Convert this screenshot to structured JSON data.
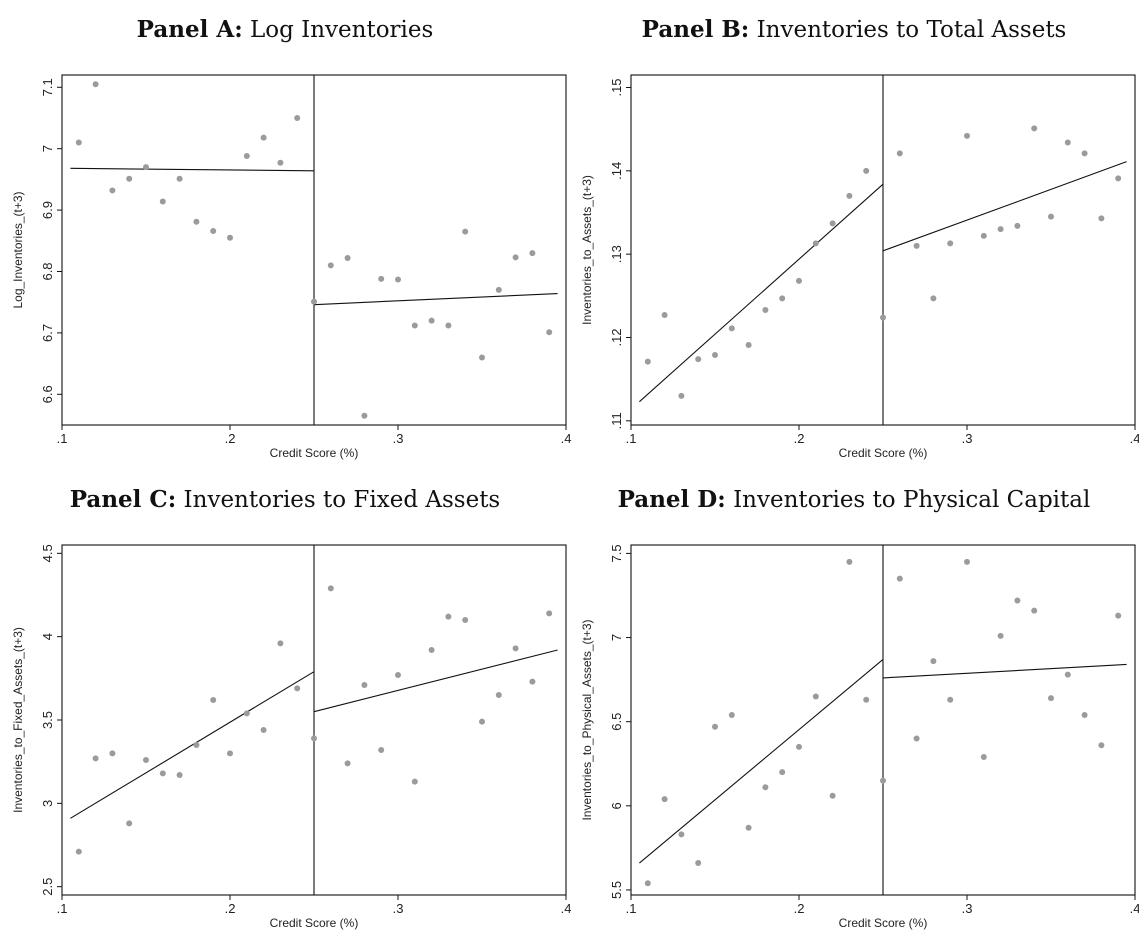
{
  "chart_data": [
    {
      "type": "scatter",
      "panel_label": "Panel A:",
      "title": "Log Inventories",
      "xlabel": "Credit Score (%)",
      "ylabel": "Log_Inventories_(t+3)",
      "xlim": [
        0.1,
        0.4
      ],
      "ylim": [
        6.55,
        7.12
      ],
      "xticks": [
        ".1",
        ".2",
        ".3",
        ".4"
      ],
      "xtick_values": [
        0.1,
        0.2,
        0.3,
        0.4
      ],
      "yticks": [
        "6.6",
        "6.7",
        "6.8",
        "6.9",
        "7",
        "7.1"
      ],
      "ytick_values": [
        6.6,
        6.7,
        6.8,
        6.9,
        7.0,
        7.1
      ],
      "cutoff": 0.25,
      "points": [
        [
          0.11,
          7.01
        ],
        [
          0.12,
          7.105
        ],
        [
          0.13,
          6.932
        ],
        [
          0.14,
          6.951
        ],
        [
          0.15,
          6.97
        ],
        [
          0.16,
          6.914
        ],
        [
          0.17,
          6.951
        ],
        [
          0.18,
          6.881
        ],
        [
          0.19,
          6.866
        ],
        [
          0.2,
          6.855
        ],
        [
          0.21,
          6.988
        ],
        [
          0.22,
          7.018
        ],
        [
          0.23,
          6.977
        ],
        [
          0.24,
          7.05
        ],
        [
          0.25,
          6.751
        ],
        [
          0.26,
          6.81
        ],
        [
          0.27,
          6.822
        ],
        [
          0.28,
          6.565
        ],
        [
          0.29,
          6.788
        ],
        [
          0.3,
          6.787
        ],
        [
          0.31,
          6.712
        ],
        [
          0.32,
          6.72
        ],
        [
          0.33,
          6.712
        ],
        [
          0.34,
          6.865
        ],
        [
          0.35,
          6.66
        ],
        [
          0.36,
          6.77
        ],
        [
          0.37,
          6.823
        ],
        [
          0.38,
          6.83
        ],
        [
          0.39,
          6.701
        ]
      ],
      "fit_lines": [
        [
          [
            0.105,
            6.968
          ],
          [
            0.25,
            6.964
          ]
        ],
        [
          [
            0.25,
            6.746
          ],
          [
            0.395,
            6.764
          ]
        ]
      ]
    },
    {
      "type": "scatter",
      "panel_label": "Panel B:",
      "title": "Inventories to Total Assets",
      "xlabel": "Credit Score (%)",
      "ylabel": "Inventories_to_Assets_(t+3)",
      "xlim": [
        0.1,
        0.4
      ],
      "ylim": [
        0.1095,
        0.1515
      ],
      "xticks": [
        ".1",
        ".2",
        ".3",
        ".4"
      ],
      "xtick_values": [
        0.1,
        0.2,
        0.3,
        0.4
      ],
      "yticks": [
        ".11",
        ".12",
        ".13",
        ".14",
        ".15"
      ],
      "ytick_values": [
        0.11,
        0.12,
        0.13,
        0.14,
        0.15
      ],
      "cutoff": 0.25,
      "points": [
        [
          0.11,
          0.1171
        ],
        [
          0.12,
          0.1227
        ],
        [
          0.13,
          0.113
        ],
        [
          0.14,
          0.1174
        ],
        [
          0.15,
          0.1179
        ],
        [
          0.16,
          0.1211
        ],
        [
          0.17,
          0.1191
        ],
        [
          0.18,
          0.1233
        ],
        [
          0.19,
          0.1247
        ],
        [
          0.2,
          0.1268
        ],
        [
          0.21,
          0.1313
        ],
        [
          0.22,
          0.1337
        ],
        [
          0.23,
          0.137
        ],
        [
          0.24,
          0.14
        ],
        [
          0.25,
          0.1224
        ],
        [
          0.26,
          0.1421
        ],
        [
          0.27,
          0.131
        ],
        [
          0.28,
          0.1247
        ],
        [
          0.29,
          0.1313
        ],
        [
          0.3,
          0.1442
        ],
        [
          0.31,
          0.1322
        ],
        [
          0.32,
          0.133
        ],
        [
          0.33,
          0.1334
        ],
        [
          0.34,
          0.1451
        ],
        [
          0.35,
          0.1345
        ],
        [
          0.36,
          0.1434
        ],
        [
          0.37,
          0.1421
        ],
        [
          0.38,
          0.1343
        ],
        [
          0.39,
          0.1391
        ]
      ],
      "fit_lines": [
        [
          [
            0.105,
            0.1123
          ],
          [
            0.25,
            0.1384
          ]
        ],
        [
          [
            0.25,
            0.1304
          ],
          [
            0.395,
            0.1411
          ]
        ]
      ]
    },
    {
      "type": "scatter",
      "panel_label": "Panel C:",
      "title": "Inventories to Fixed Assets",
      "xlabel": "Credit Score (%)",
      "ylabel": "Inventories_to_Fixed_Assets_(t+3)",
      "xlim": [
        0.1,
        0.4
      ],
      "ylim": [
        2.45,
        4.55
      ],
      "xticks": [
        ".1",
        ".2",
        ".3",
        ".4"
      ],
      "xtick_values": [
        0.1,
        0.2,
        0.3,
        0.4
      ],
      "yticks": [
        "2.5",
        "3",
        "3.5",
        "4",
        "4.5"
      ],
      "ytick_values": [
        2.5,
        3.0,
        3.5,
        4.0,
        4.5
      ],
      "cutoff": 0.25,
      "points": [
        [
          0.11,
          2.71
        ],
        [
          0.12,
          3.27
        ],
        [
          0.13,
          3.3
        ],
        [
          0.14,
          2.88
        ],
        [
          0.15,
          3.26
        ],
        [
          0.16,
          3.18
        ],
        [
          0.17,
          3.17
        ],
        [
          0.18,
          3.35
        ],
        [
          0.19,
          3.62
        ],
        [
          0.2,
          3.3
        ],
        [
          0.21,
          3.54
        ],
        [
          0.22,
          3.44
        ],
        [
          0.23,
          3.96
        ],
        [
          0.24,
          3.69
        ],
        [
          0.25,
          3.39
        ],
        [
          0.26,
          4.29
        ],
        [
          0.27,
          3.24
        ],
        [
          0.28,
          3.71
        ],
        [
          0.29,
          3.32
        ],
        [
          0.3,
          3.77
        ],
        [
          0.31,
          3.13
        ],
        [
          0.32,
          3.92
        ],
        [
          0.33,
          4.12
        ],
        [
          0.34,
          4.1
        ],
        [
          0.35,
          3.49
        ],
        [
          0.36,
          3.65
        ],
        [
          0.37,
          3.93
        ],
        [
          0.38,
          3.73
        ],
        [
          0.39,
          4.14
        ]
      ],
      "fit_lines": [
        [
          [
            0.105,
            2.91
          ],
          [
            0.25,
            3.79
          ]
        ],
        [
          [
            0.25,
            3.55
          ],
          [
            0.395,
            3.92
          ]
        ]
      ]
    },
    {
      "type": "scatter",
      "panel_label": "Panel D:",
      "title": "Inventories to Physical Capital",
      "xlabel": "Credit Score (%)",
      "ylabel": "Inventories_to_Physical_Assets_(t+3)",
      "xlim": [
        0.1,
        0.4
      ],
      "ylim": [
        5.47,
        7.55
      ],
      "xticks": [
        ".1",
        ".2",
        ".3",
        ".4"
      ],
      "xtick_values": [
        0.1,
        0.2,
        0.3,
        0.4
      ],
      "yticks": [
        "5.5",
        "6",
        "6.5",
        "7",
        "7.5"
      ],
      "ytick_values": [
        5.5,
        6.0,
        6.5,
        7.0,
        7.5
      ],
      "cutoff": 0.25,
      "points": [
        [
          0.11,
          5.54
        ],
        [
          0.12,
          6.04
        ],
        [
          0.13,
          5.83
        ],
        [
          0.14,
          5.66
        ],
        [
          0.15,
          6.47
        ],
        [
          0.16,
          6.54
        ],
        [
          0.17,
          5.87
        ],
        [
          0.18,
          6.11
        ],
        [
          0.19,
          6.2
        ],
        [
          0.2,
          6.35
        ],
        [
          0.21,
          6.65
        ],
        [
          0.22,
          6.06
        ],
        [
          0.23,
          7.45
        ],
        [
          0.24,
          6.63
        ],
        [
          0.25,
          6.15
        ],
        [
          0.26,
          7.35
        ],
        [
          0.27,
          6.4
        ],
        [
          0.28,
          6.86
        ],
        [
          0.29,
          6.63
        ],
        [
          0.3,
          7.45
        ],
        [
          0.31,
          6.29
        ],
        [
          0.32,
          7.01
        ],
        [
          0.33,
          7.22
        ],
        [
          0.34,
          7.16
        ],
        [
          0.35,
          6.64
        ],
        [
          0.36,
          6.78
        ],
        [
          0.37,
          6.54
        ],
        [
          0.38,
          6.36
        ],
        [
          0.39,
          7.13
        ]
      ],
      "fit_lines": [
        [
          [
            0.105,
            5.66
          ],
          [
            0.25,
            6.87
          ]
        ],
        [
          [
            0.25,
            6.76
          ],
          [
            0.395,
            6.84
          ]
        ]
      ]
    }
  ]
}
